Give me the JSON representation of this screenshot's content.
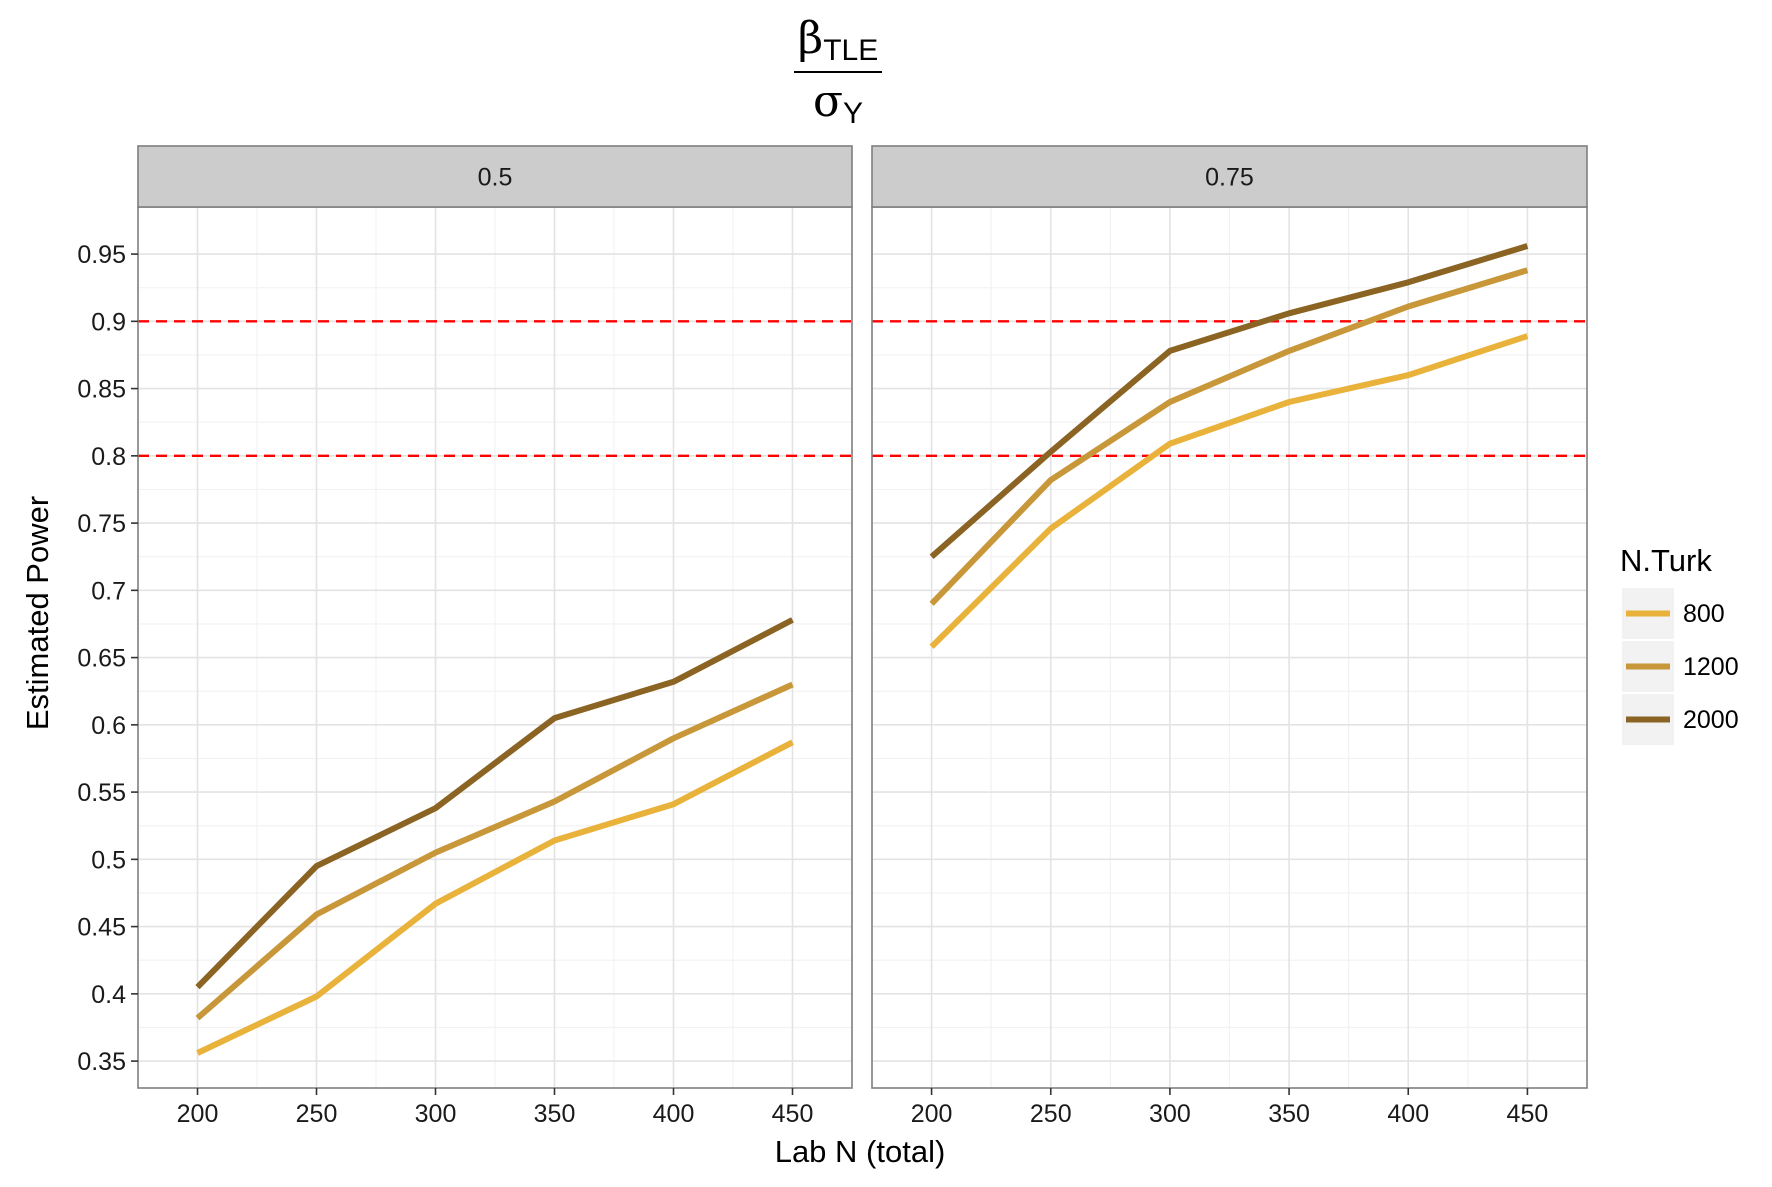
{
  "chart_data": {
    "type": "line",
    "title": {
      "main": "β",
      "main_sub": "TLE",
      "denominator": "σ",
      "denominator_sub": "Y"
    },
    "xlabel": "Lab N (total)",
    "ylabel": "Estimated Power",
    "x": [
      200,
      250,
      300,
      350,
      400,
      450
    ],
    "x_tick_labels": [
      "200",
      "250",
      "300",
      "350",
      "400",
      "450"
    ],
    "xlim": [
      175,
      475
    ],
    "ylim": [
      0.33,
      0.985
    ],
    "y_ticks": [
      0.35,
      0.4,
      0.45,
      0.5,
      0.55,
      0.6,
      0.65,
      0.7,
      0.75,
      0.8,
      0.85,
      0.9,
      0.95
    ],
    "y_tick_labels": [
      "0.35",
      "0.4",
      "0.45",
      "0.5",
      "0.55",
      "0.6",
      "0.65",
      "0.7",
      "0.75",
      "0.8",
      "0.85",
      "0.9",
      "0.95"
    ],
    "grid": true,
    "reference_lines": [
      {
        "y": 0.8,
        "color": "#ff0000",
        "style": "dashed"
      },
      {
        "y": 0.9,
        "color": "#ff0000",
        "style": "dashed"
      }
    ],
    "legend": {
      "title": "N.Turk",
      "position": "right",
      "entries": [
        {
          "label": "800",
          "color": "#e8b23b"
        },
        {
          "label": "1200",
          "color": "#c8973a"
        },
        {
          "label": "2000",
          "color": "#8b6424"
        }
      ]
    },
    "panels": [
      {
        "strip_label": "0.5",
        "series": [
          {
            "name": "800",
            "color": "#e8b23b",
            "values": [
              0.356,
              0.398,
              0.467,
              0.514,
              0.541,
              0.587
            ]
          },
          {
            "name": "1200",
            "color": "#c8973a",
            "values": [
              0.382,
              0.459,
              0.505,
              0.543,
              0.59,
              0.63
            ]
          },
          {
            "name": "2000",
            "color": "#8b6424",
            "values": [
              0.405,
              0.495,
              0.538,
              0.605,
              0.632,
              0.678
            ]
          }
        ]
      },
      {
        "strip_label": "0.75",
        "series": [
          {
            "name": "800",
            "color": "#e8b23b",
            "values": [
              0.658,
              0.746,
              0.809,
              0.84,
              0.86,
              0.889
            ]
          },
          {
            "name": "1200",
            "color": "#c8973a",
            "values": [
              0.69,
              0.782,
              0.84,
              0.878,
              0.911,
              0.938
            ]
          },
          {
            "name": "2000",
            "color": "#8b6424",
            "values": [
              0.725,
              0.803,
              0.878,
              0.906,
              0.929,
              0.956
            ]
          }
        ]
      }
    ]
  }
}
